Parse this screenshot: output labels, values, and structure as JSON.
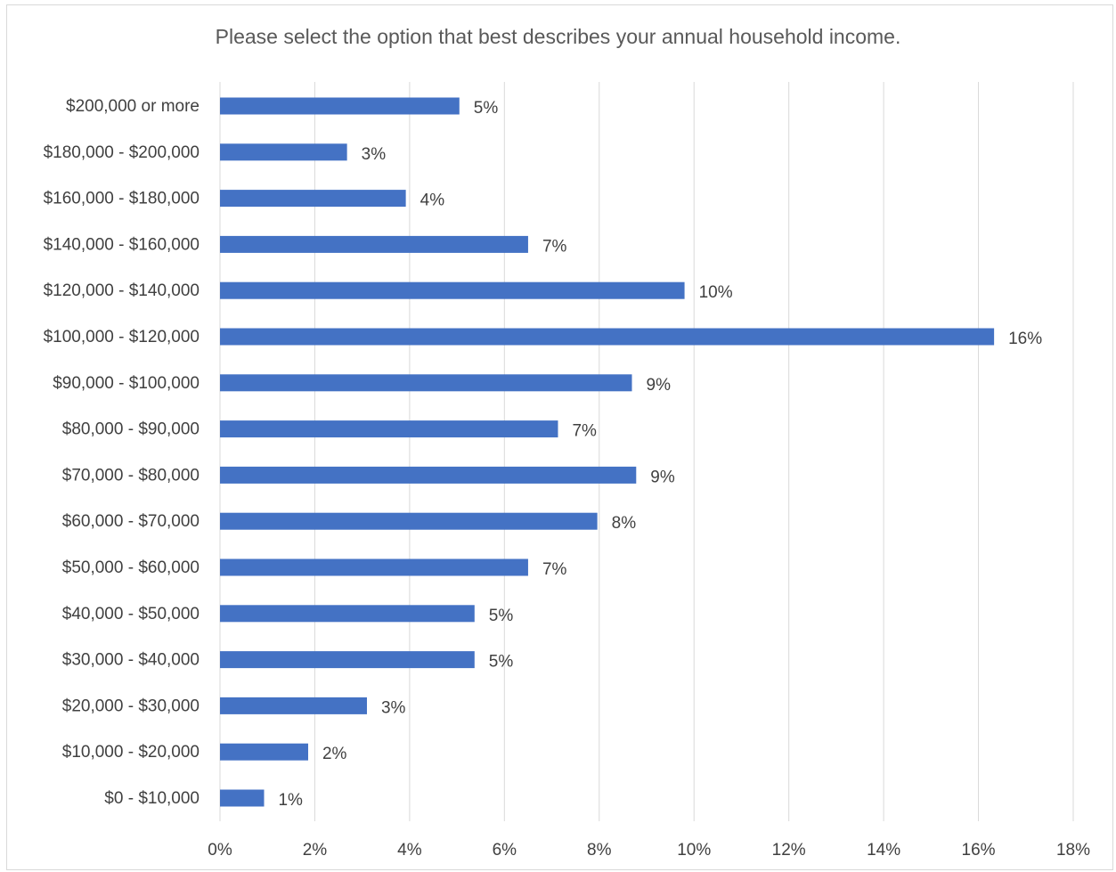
{
  "chart_data": {
    "type": "bar",
    "orientation": "horizontal",
    "title": "Please select the option that best describes your annual household income.",
    "categories": [
      "$200,000 or more",
      "$180,000 - $200,000",
      "$160,000 - $180,000",
      "$140,000 - $160,000",
      "$120,000 - $140,000",
      "$100,000 - $120,000",
      "$90,000 - $100,000",
      "$80,000 - $90,000",
      "$70,000 - $80,000",
      "$60,000 - $70,000",
      "$50,000 - $60,000",
      "$40,000 - $50,000",
      "$30,000 - $40,000",
      "$20,000 - $30,000",
      "$10,000 - $20,000",
      "$0 - $10,000"
    ],
    "values": [
      5.05,
      2.68,
      3.92,
      6.5,
      9.8,
      16.33,
      8.69,
      7.13,
      8.78,
      7.96,
      6.5,
      5.37,
      5.37,
      3.1,
      1.86,
      0.93
    ],
    "data_labels": [
      "5%",
      "3%",
      "4%",
      "7%",
      "10%",
      "16%",
      "9%",
      "7%",
      "9%",
      "8%",
      "7%",
      "5%",
      "5%",
      "3%",
      "2%",
      "1%"
    ],
    "xlim": [
      0,
      18
    ],
    "x_ticks": [
      0,
      2,
      4,
      6,
      8,
      10,
      12,
      14,
      16,
      18
    ],
    "x_tick_labels": [
      "0%",
      "2%",
      "4%",
      "6%",
      "8%",
      "10%",
      "12%",
      "14%",
      "16%",
      "18%"
    ],
    "xlabel": "",
    "ylabel": "",
    "grid": "vertical",
    "legend": "none",
    "colors": {
      "bar": "#4472c4",
      "grid": "#d9d9d9",
      "text": "#404040",
      "title": "#595959"
    }
  }
}
